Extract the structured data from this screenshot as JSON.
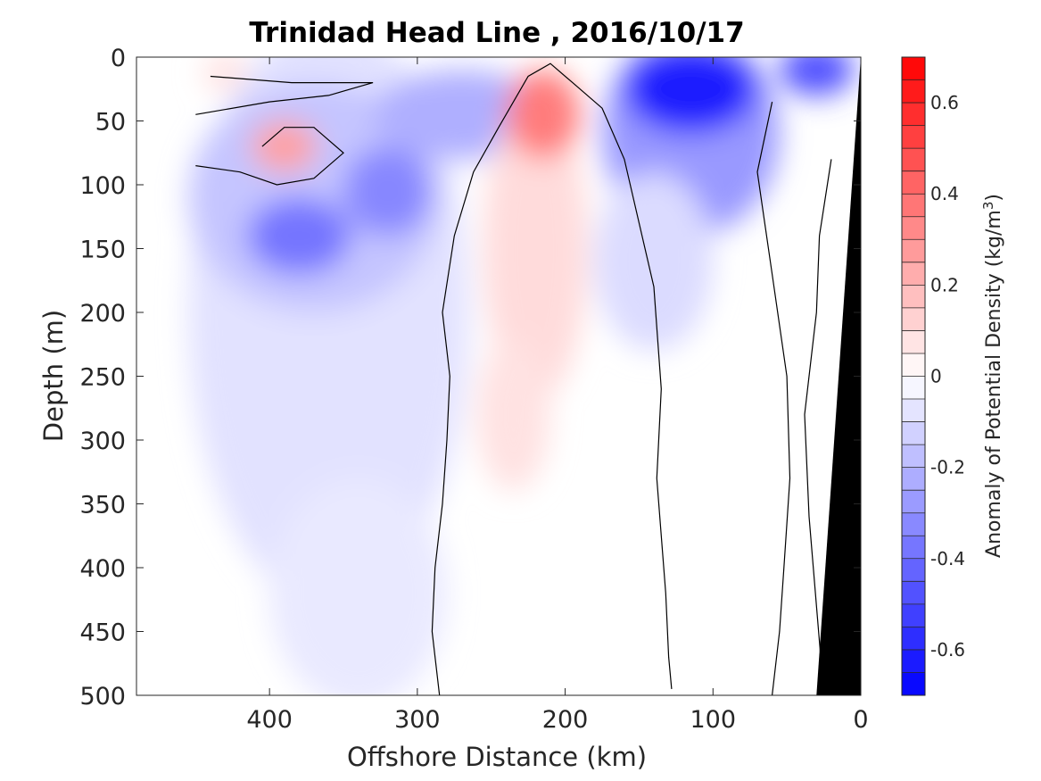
{
  "chart_data": {
    "type": "heatmap",
    "title": "Trinidad Head Line , 2016/10/17",
    "xlabel": "Offshore Distance (km)",
    "ylabel": "Depth (m)",
    "x_reversed": true,
    "y_reversed": true,
    "xlim": [
      490,
      0
    ],
    "ylim": [
      0,
      500
    ],
    "xticks": [
      400,
      300,
      200,
      100,
      0
    ],
    "yticks": [
      0,
      50,
      100,
      150,
      200,
      250,
      300,
      350,
      400,
      450,
      500
    ],
    "colorbar": {
      "label_main": "Anomaly of Potential Density (kg/m",
      "label_sup": "3",
      "label_close": ")",
      "clim": [
        -0.7,
        0.7
      ],
      "step": 0.05,
      "ticks": [
        -0.6,
        -0.4,
        -0.2,
        0,
        0.2,
        0.4,
        0.6
      ],
      "ticklabels": [
        "-0.6",
        "-0.4",
        "-0.2",
        "0",
        "0.2",
        "0.4",
        "0.6"
      ],
      "colormap": "blue-white-red"
    },
    "data_extent": {
      "x": [
        455,
        12
      ],
      "y": [
        0,
        500
      ]
    },
    "features": [
      {
        "name": "surface blue core",
        "x": 115,
        "y": 25,
        "value": -0.6
      },
      {
        "name": "near-shore surface blue",
        "x": 30,
        "y": 10,
        "value": -0.5
      },
      {
        "name": "offshore mid-depth blue",
        "x": 380,
        "y": 140,
        "value": -0.35
      },
      {
        "name": "offshore blue eddy",
        "x": 320,
        "y": 100,
        "value": -0.35
      },
      {
        "name": "red subsurface anomaly",
        "x": 215,
        "y": 45,
        "value": 0.35
      },
      {
        "name": "red offshore lens",
        "x": 390,
        "y": 70,
        "value": 0.25
      },
      {
        "name": "red surface patch",
        "x": 430,
        "y": 12,
        "value": 0.08
      }
    ]
  },
  "colors": {
    "negative_max": "#0000ff",
    "positive_max": "#ff0000",
    "zero": "#ffffff",
    "bathymetry": "#000000",
    "contour": "#000000"
  }
}
